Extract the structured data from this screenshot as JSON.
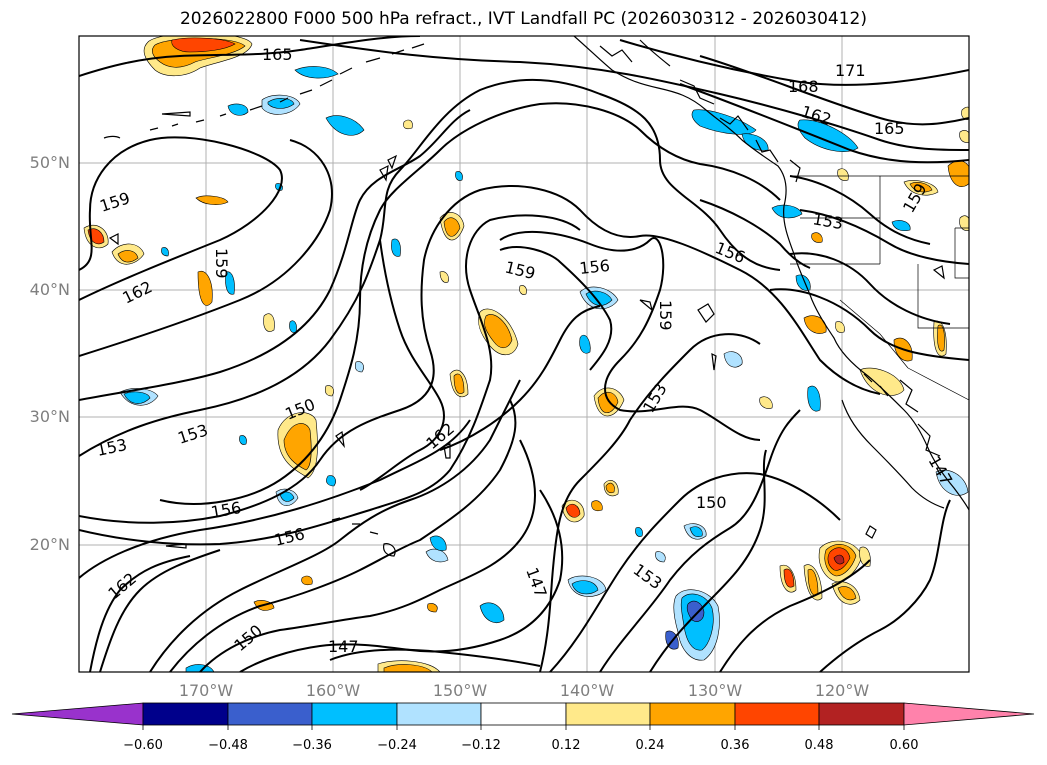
{
  "title": "2026022800 F000 500 hPa refract., IVT Landfall PC (2026030312 - 2026030412)",
  "lat_labels": [
    "50°N",
    "40°N",
    "30°N",
    "20°N"
  ],
  "lon_labels": [
    "170°W",
    "160°W",
    "150°W",
    "140°W",
    "130°W",
    "120°W"
  ],
  "contour_labels": [
    "165",
    "171",
    "168",
    "162",
    "165",
    "159",
    "153",
    "159",
    "162",
    "159",
    "156",
    "156",
    "159",
    "150",
    "153",
    "153",
    "162",
    "153",
    "150",
    "156",
    "156",
    "147",
    "153",
    "162",
    "150",
    "147",
    "147"
  ],
  "colorbar": {
    "ticks": [
      "−0.60",
      "−0.48",
      "−0.36",
      "−0.24",
      "−0.12",
      "0.12",
      "0.24",
      "0.36",
      "0.48",
      "0.60"
    ],
    "colors": [
      "#9932cc",
      "#00008b",
      "#3a5fcd",
      "#00bfff",
      "#b0e2ff",
      "#ffffff",
      "#ffe98a",
      "#ffa500",
      "#ff4500",
      "#b22222",
      "#ff82ab"
    ]
  },
  "fill_colors": {
    "light_blue": "#b0e2ff",
    "blue": "#00bfff",
    "dark_blue": "#3a5fcd",
    "light_yellow": "#ffe98a",
    "orange": "#ffa500",
    "red_orange": "#ff4500",
    "dark_red": "#b22222"
  }
}
